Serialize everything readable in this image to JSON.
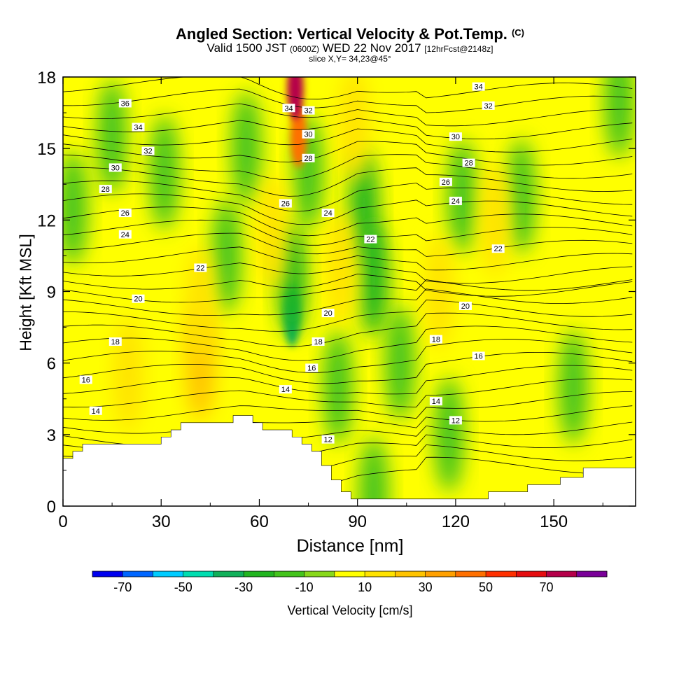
{
  "header": {
    "title": "Angled Section: Vertical Velocity & Pot.Temp.",
    "title_mark": "(C)",
    "valid_prefix": "Valid 1500 JST",
    "valid_utc": "(0600Z)",
    "valid_date": "WED 22 Nov 2017",
    "forecast": "[12hrFcst@2148z]",
    "slice": "slice X,Y= 34,23@45°"
  },
  "chart_data": {
    "type": "heatmap",
    "x": {
      "label": "Distance [nm]",
      "range": [
        0,
        175
      ],
      "ticks": [
        0,
        30,
        60,
        90,
        120,
        150
      ]
    },
    "y": {
      "label": "Height [Kft MSL]",
      "range": [
        0,
        18
      ],
      "ticks": [
        0,
        3,
        6,
        9,
        12,
        15,
        18
      ]
    },
    "colorbar": {
      "label": "Vertical Velocity [cm/s]",
      "tick_labels": [
        "-70",
        "-50",
        "-30",
        "-10",
        "10",
        "30",
        "50",
        "70"
      ],
      "bounds": [
        -80,
        -70,
        -60,
        -50,
        -40,
        -30,
        -20,
        -10,
        0,
        10,
        20,
        30,
        40,
        50,
        60,
        70,
        80
      ],
      "colors": [
        "#0000ee",
        "#0066ff",
        "#00ccff",
        "#00ddb0",
        "#11b05a",
        "#22b520",
        "#44c41c",
        "#88d81a",
        "#ffff00",
        "#ffe300",
        "#ffc400",
        "#ffa000",
        "#ff7000",
        "#ff3000",
        "#e60d10",
        "#b5004a",
        "#7a0099"
      ]
    },
    "terrain_profile": [
      [
        0,
        2
      ],
      [
        3,
        2
      ],
      [
        3,
        2.3
      ],
      [
        6,
        2.3
      ],
      [
        6,
        2.6
      ],
      [
        30,
        2.6
      ],
      [
        30,
        2.9
      ],
      [
        33,
        2.9
      ],
      [
        33,
        3.2
      ],
      [
        36,
        3.2
      ],
      [
        36,
        3.5
      ],
      [
        52,
        3.5
      ],
      [
        52,
        3.8
      ],
      [
        58,
        3.8
      ],
      [
        58,
        3.5
      ],
      [
        61,
        3.5
      ],
      [
        61,
        3.2
      ],
      [
        70,
        3.2
      ],
      [
        70,
        2.9
      ],
      [
        73,
        2.9
      ],
      [
        73,
        2.6
      ],
      [
        76,
        2.6
      ],
      [
        76,
        2.3
      ],
      [
        79,
        2.3
      ],
      [
        79,
        1.7
      ],
      [
        82,
        1.7
      ],
      [
        82,
        1.1
      ],
      [
        85,
        1.1
      ],
      [
        85,
        0.6
      ],
      [
        88,
        0.6
      ],
      [
        88,
        0.3
      ],
      [
        130,
        0.3
      ],
      [
        130,
        0.6
      ],
      [
        142,
        0.6
      ],
      [
        142,
        0.9
      ],
      [
        152,
        0.9
      ],
      [
        152,
        1.2
      ],
      [
        159,
        1.2
      ],
      [
        159,
        1.6
      ],
      [
        175,
        1.6
      ]
    ],
    "velocity_features": [
      {
        "x": 3,
        "y": 12.5,
        "w": -15
      },
      {
        "x": 15,
        "y": 15.5,
        "w": -15
      },
      {
        "x": 31,
        "y": 14,
        "w": -15
      },
      {
        "x": 50,
        "y": 10.5,
        "w": -15
      },
      {
        "x": 56,
        "y": 15,
        "w": -20
      },
      {
        "x": 70,
        "y": 8,
        "w": -35
      },
      {
        "x": 70,
        "y": 9.5,
        "w": -22
      },
      {
        "x": 75,
        "y": 14,
        "w": -12
      },
      {
        "x": 84,
        "y": 5,
        "w": -15
      },
      {
        "x": 92,
        "y": 12.5,
        "w": -22
      },
      {
        "x": 95,
        "y": 9.5,
        "w": -28
      },
      {
        "x": 103,
        "y": 6,
        "w": -15
      },
      {
        "x": 122,
        "y": 13,
        "w": -18
      },
      {
        "x": 140,
        "y": 13,
        "w": -12
      },
      {
        "x": 156,
        "y": 5,
        "w": -12
      },
      {
        "x": 170,
        "y": 17,
        "w": -15
      },
      {
        "x": 118,
        "y": 3,
        "w": -12
      },
      {
        "x": 95,
        "y": 0.5,
        "w": -15
      },
      {
        "x": 72,
        "y": 15.5,
        "w": 45
      },
      {
        "x": 71,
        "y": 17.5,
        "w": 75
      },
      {
        "x": 20,
        "y": 5.5,
        "w": 18
      },
      {
        "x": 42,
        "y": 6,
        "w": 22
      },
      {
        "x": 42,
        "y": 8.5,
        "w": 15
      },
      {
        "x": 64,
        "y": 11.5,
        "w": 18
      },
      {
        "x": 85,
        "y": 10,
        "w": 18
      },
      {
        "x": 132,
        "y": 12,
        "w": 18
      },
      {
        "x": 89,
        "y": 16,
        "w": 15
      },
      {
        "x": 115,
        "y": 9,
        "w": 12
      }
    ],
    "theta_labels": [
      {
        "text": "36",
        "x": 19,
        "y": 16.9
      },
      {
        "text": "34",
        "x": 23,
        "y": 15.9
      },
      {
        "text": "32",
        "x": 26,
        "y": 14.9
      },
      {
        "text": "30",
        "x": 16,
        "y": 14.2
      },
      {
        "text": "28",
        "x": 13,
        "y": 13.3
      },
      {
        "text": "26",
        "x": 19,
        "y": 12.3
      },
      {
        "text": "24",
        "x": 19,
        "y": 11.4
      },
      {
        "text": "22",
        "x": 42,
        "y": 10
      },
      {
        "text": "20",
        "x": 23,
        "y": 8.7
      },
      {
        "text": "18",
        "x": 16,
        "y": 6.9
      },
      {
        "text": "16",
        "x": 7,
        "y": 5.3
      },
      {
        "text": "14",
        "x": 10,
        "y": 4
      },
      {
        "text": "34",
        "x": 69,
        "y": 16.7
      },
      {
        "text": "32",
        "x": 75,
        "y": 16.6
      },
      {
        "text": "30",
        "x": 75,
        "y": 15.6
      },
      {
        "text": "28",
        "x": 75,
        "y": 14.6
      },
      {
        "text": "26",
        "x": 68,
        "y": 12.7
      },
      {
        "text": "24",
        "x": 81,
        "y": 12.3
      },
      {
        "text": "22",
        "x": 94,
        "y": 11.2
      },
      {
        "text": "20",
        "x": 81,
        "y": 8.1
      },
      {
        "text": "18",
        "x": 78,
        "y": 6.9
      },
      {
        "text": "16",
        "x": 76,
        "y": 5.8
      },
      {
        "text": "14",
        "x": 68,
        "y": 4.9
      },
      {
        "text": "12",
        "x": 81,
        "y": 2.8
      },
      {
        "text": "34",
        "x": 127,
        "y": 17.6
      },
      {
        "text": "32",
        "x": 130,
        "y": 16.8
      },
      {
        "text": "30",
        "x": 120,
        "y": 15.5
      },
      {
        "text": "28",
        "x": 124,
        "y": 14.4
      },
      {
        "text": "26",
        "x": 117,
        "y": 13.6
      },
      {
        "text": "24",
        "x": 120,
        "y": 12.8
      },
      {
        "text": "22",
        "x": 133,
        "y": 10.8
      },
      {
        "text": "20",
        "x": 123,
        "y": 8.4
      },
      {
        "text": "18",
        "x": 114,
        "y": 7
      },
      {
        "text": "16",
        "x": 127,
        "y": 6.3
      },
      {
        "text": "14",
        "x": 114,
        "y": 4.4
      },
      {
        "text": "12",
        "x": 120,
        "y": 3.6
      }
    ]
  }
}
